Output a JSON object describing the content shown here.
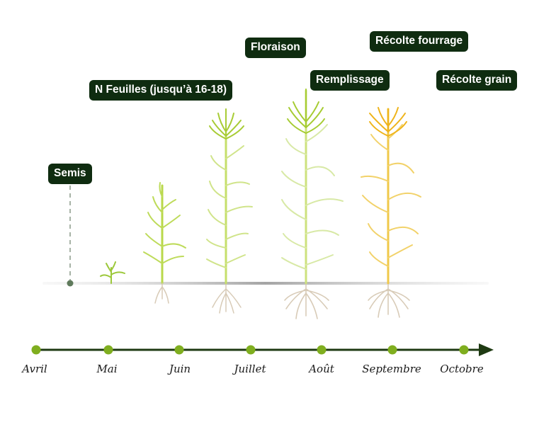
{
  "stages": {
    "semis": "Semis",
    "feuilles": "N Feuilles (jusqu’à 16-18)",
    "floraison": "Floraison",
    "remplissage": "Remplissage",
    "recolte_fourrage": "Récolte fourrage",
    "recolte_grain": "Récolte grain"
  },
  "timeline": {
    "months": [
      "Avril",
      "Mai",
      "Juin",
      "Juillet",
      "Août",
      "Septembre",
      "Octobre"
    ]
  },
  "colors": {
    "label_bg": "#0f2c10",
    "timeline_line": "#1e3a12",
    "timeline_dot": "#7fae1f",
    "plant_green": "#b9d84a",
    "plant_pale": "#d3e6a0",
    "plant_ripe": "#f0c020",
    "roots": "#d8cbb7"
  }
}
